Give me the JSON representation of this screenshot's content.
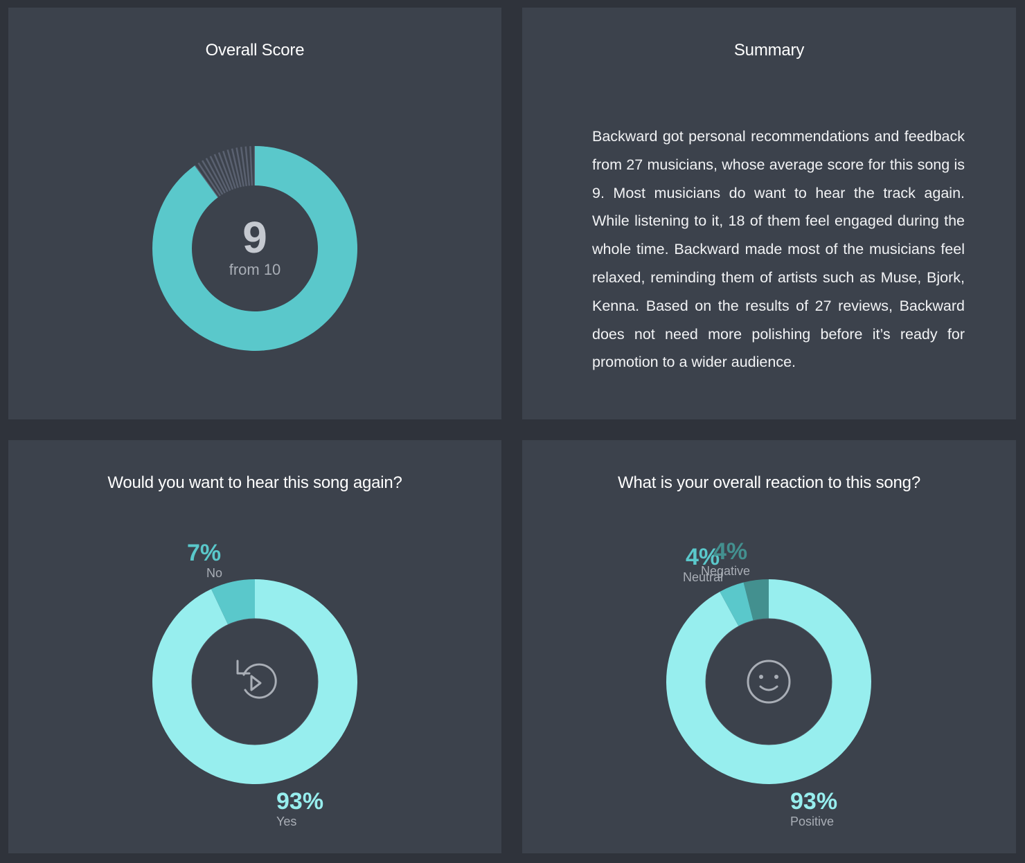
{
  "cards": {
    "overall_score": {
      "title": "Overall Score",
      "score": "9",
      "score_suffix": "from 10",
      "score_value": 9,
      "score_max": 10,
      "colors": {
        "fill": "#5ac8cb",
        "track": "#5a6170"
      }
    },
    "summary": {
      "title": "Summary",
      "text": "Backward got personal recommendations and feedback from 27 musicians, whose average score for this song is 9. Most musicians do want to hear the track again. While listening to it, 18 of them feel engaged during the whole time. Backward made most of the musicians feel relaxed, reminding them of artists such as Muse, Bjork, Kenna. Based on the results of 27 reviews, Backward does not need more polishing before it’s ready for promotion to a wider audience."
    },
    "hear_again": {
      "title": "Would you want to hear this song again?",
      "icon": "replay-icon",
      "slices": [
        {
          "label": "Yes",
          "pct_text": "93%",
          "value": 93,
          "color": "#97eeee"
        },
        {
          "label": "No",
          "pct_text": "7%",
          "value": 7,
          "color": "#5ac8cb"
        }
      ]
    },
    "overall_reaction": {
      "title": "What is your overall reaction to this song?",
      "icon": "smile-icon",
      "slices": [
        {
          "label": "Positive",
          "pct_text": "93%",
          "value": 93,
          "color": "#97eeee"
        },
        {
          "label": "Neutral",
          "pct_text": "4%",
          "value": 4,
          "color": "#5ac8cb"
        },
        {
          "label": "Negative",
          "pct_text": "4%",
          "value": 4,
          "color": "#43908f"
        }
      ]
    }
  }
}
